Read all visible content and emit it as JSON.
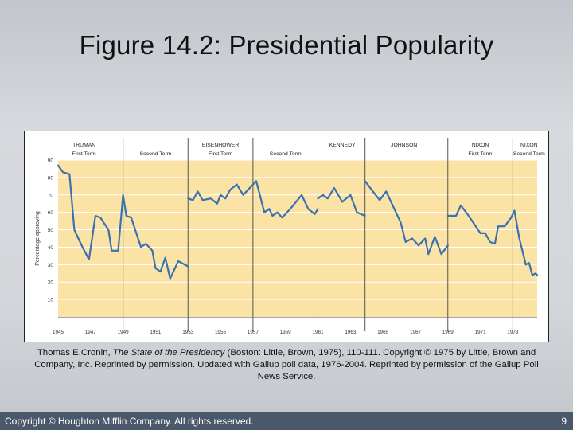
{
  "slide": {
    "title": "Figure 14.2: Presidential Popularity",
    "caption_author": "Thomas E.Cronin, ",
    "caption_book": "The State of the Presidency",
    "caption_rest": " (Boston: Little, Brown, 1975), 110-111. Copyright © 1975 by Little, Brown and Company, Inc. Reprinted by permission. Updated with Gallup poll data, 1976-2004. Reprinted by permission of the Gallup Poll News Service.",
    "footer_copyright": "Copyright © Houghton Mifflin Company. All rights reserved.",
    "page_number": "9"
  },
  "colors": {
    "plot_band": "#fbe3a6",
    "line": "#3a72b0",
    "divider": "#555555"
  },
  "chart_data": {
    "type": "line",
    "title": "",
    "xlabel": "",
    "ylabel": "Percentage approving",
    "xlim": [
      1945.0,
      1974.5
    ],
    "ylim": [
      0,
      90
    ],
    "yticks": [
      10,
      20,
      30,
      40,
      50,
      60,
      70,
      80,
      90
    ],
    "xticks": [
      "1945",
      "1947",
      "1949",
      "1951",
      "1953",
      "1955",
      "1957",
      "1959",
      "1961",
      "1963",
      "1965",
      "1967",
      "1969",
      "1971",
      "1973"
    ],
    "grid": true,
    "legend": "none",
    "term_dividers": [
      1949.0,
      1953.0,
      1957.0,
      1961.0,
      1963.9,
      1969.0,
      1973.0
    ],
    "president_labels": [
      {
        "name": "TRUMAN",
        "term": "",
        "x": 1946.6
      },
      {
        "name": "",
        "term": "First Term",
        "x": 1946.6
      },
      {
        "name": "",
        "term": "Second Term",
        "x": 1951.0
      },
      {
        "name": "EISENHOWER",
        "term": "",
        "x": 1955.0
      },
      {
        "name": "",
        "term": "First Term",
        "x": 1955.0
      },
      {
        "name": "",
        "term": "Second Term",
        "x": 1959.0
      },
      {
        "name": "KENNEDY",
        "term": "",
        "x": 1962.5
      },
      {
        "name": "JOHNSON",
        "term": "",
        "x": 1966.3
      },
      {
        "name": "NIXON",
        "term": "",
        "x": 1971.0
      },
      {
        "name": "",
        "term": "First Term",
        "x": 1971.0
      },
      {
        "name": "NIXON",
        "term": "",
        "x": 1974.0
      },
      {
        "name": "",
        "term": "Second Term",
        "x": 1974.0
      }
    ],
    "series": [
      {
        "name": "Truman",
        "points": [
          [
            1945.0,
            87
          ],
          [
            1945.3,
            83
          ],
          [
            1945.7,
            82
          ],
          [
            1946.0,
            50
          ],
          [
            1946.5,
            40
          ],
          [
            1946.9,
            33
          ],
          [
            1947.3,
            58
          ],
          [
            1947.6,
            57
          ],
          [
            1948.1,
            50
          ],
          [
            1948.3,
            38
          ],
          [
            1948.7,
            38
          ],
          [
            1949.0,
            70
          ],
          [
            1949.2,
            58
          ],
          [
            1949.5,
            57
          ],
          [
            1950.1,
            40
          ],
          [
            1950.4,
            42
          ],
          [
            1950.8,
            38
          ],
          [
            1951.0,
            28
          ],
          [
            1951.3,
            26
          ],
          [
            1951.6,
            34
          ],
          [
            1951.9,
            22
          ],
          [
            1952.4,
            32
          ],
          [
            1953.0,
            29
          ]
        ]
      },
      {
        "name": "Eisenhower",
        "points": [
          [
            1953.0,
            68
          ],
          [
            1953.3,
            67
          ],
          [
            1953.6,
            72
          ],
          [
            1953.9,
            67
          ],
          [
            1954.4,
            68
          ],
          [
            1954.8,
            65
          ],
          [
            1955.0,
            70
          ],
          [
            1955.3,
            68
          ],
          [
            1955.6,
            73
          ],
          [
            1956.0,
            76
          ],
          [
            1956.4,
            70
          ],
          [
            1956.8,
            74
          ],
          [
            1957.2,
            78
          ],
          [
            1957.7,
            60
          ],
          [
            1958.0,
            62
          ],
          [
            1958.2,
            58
          ],
          [
            1958.5,
            60
          ],
          [
            1958.8,
            57
          ],
          [
            1959.3,
            62
          ],
          [
            1960.0,
            70
          ],
          [
            1960.4,
            62
          ],
          [
            1960.8,
            59
          ],
          [
            1961.0,
            62
          ]
        ]
      },
      {
        "name": "Kennedy",
        "points": [
          [
            1961.0,
            68
          ],
          [
            1961.3,
            70
          ],
          [
            1961.6,
            68
          ],
          [
            1962.0,
            74
          ],
          [
            1962.5,
            66
          ],
          [
            1963.0,
            70
          ],
          [
            1963.4,
            60
          ],
          [
            1963.9,
            58
          ]
        ]
      },
      {
        "name": "Johnson",
        "points": [
          [
            1963.9,
            78
          ],
          [
            1964.3,
            73
          ],
          [
            1964.8,
            67
          ],
          [
            1965.2,
            72
          ],
          [
            1965.6,
            64
          ],
          [
            1966.1,
            54
          ],
          [
            1966.4,
            43
          ],
          [
            1966.8,
            45
          ],
          [
            1967.2,
            41
          ],
          [
            1967.6,
            45
          ],
          [
            1967.8,
            36
          ],
          [
            1968.2,
            46
          ],
          [
            1968.6,
            36
          ],
          [
            1969.0,
            41
          ]
        ]
      },
      {
        "name": "Nixon",
        "points": [
          [
            1969.0,
            58
          ],
          [
            1969.5,
            58
          ],
          [
            1969.8,
            64
          ],
          [
            1970.2,
            59
          ],
          [
            1970.5,
            55
          ],
          [
            1971.0,
            48
          ],
          [
            1971.3,
            48
          ],
          [
            1971.6,
            43
          ],
          [
            1971.9,
            42
          ],
          [
            1972.1,
            52
          ],
          [
            1972.5,
            52
          ],
          [
            1972.9,
            57
          ],
          [
            1973.1,
            61
          ],
          [
            1973.4,
            45
          ],
          [
            1973.8,
            30
          ],
          [
            1974.0,
            31
          ],
          [
            1974.2,
            24
          ],
          [
            1974.4,
            25
          ],
          [
            1974.5,
            24
          ]
        ]
      }
    ]
  }
}
